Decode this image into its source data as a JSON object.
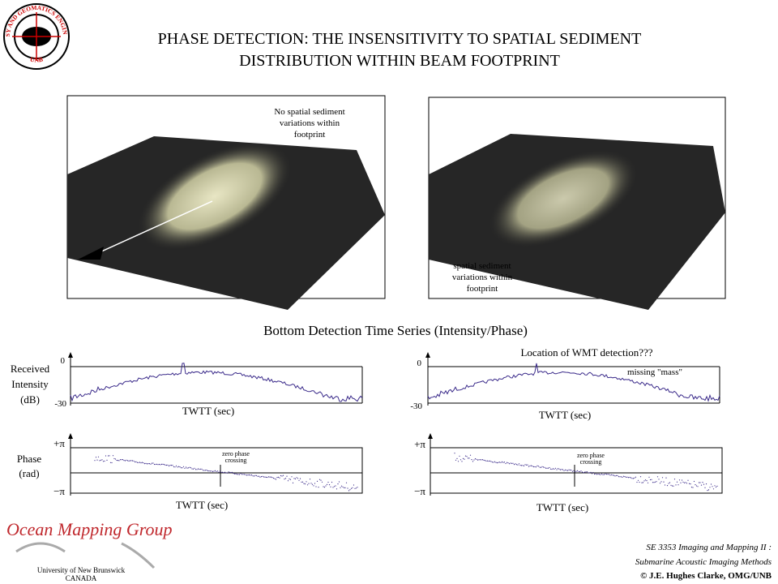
{
  "header": {
    "logo_text": "GEODESY AND GEOMATICS ENGINEERING",
    "logo_sub": "UNB",
    "title_lines": [
      "PHASE DETECTION: THE INSENSITIVITY TO SPATIAL SEDIMENT",
      "DISTRIBUTION WITHIN BEAM FOOTPRINT"
    ]
  },
  "images": [
    {
      "annotation_lines": [
        "No spatial sediment",
        "variations within",
        "footprint"
      ]
    },
    {
      "annotation_lines": [
        "spatial sediment",
        "variations within",
        "footprint"
      ]
    }
  ],
  "section_title": "Bottom Detection Time Series (Intensity/Phase)",
  "plots": [
    {
      "y_label_lines": [
        "Received",
        "Intensity",
        "(dB)"
      ],
      "y_top": "0",
      "y_bottom": "-30",
      "x_label": "TWTT (sec)"
    },
    {
      "annotation": "Location of WMT detection???",
      "note": "missing \"mass\"",
      "y_top": "0",
      "y_bottom": "-30",
      "x_label": "TWTT (sec)"
    },
    {
      "y_label_lines": [
        "Phase",
        "(rad)"
      ],
      "y_top": "+π",
      "y_bottom": "−π",
      "crossing_lines": [
        "zero phase",
        "crossing"
      ],
      "x_label": "TWTT (sec)"
    },
    {
      "y_top": "+π",
      "y_bottom": "−π",
      "crossing_lines": [
        "zero phase",
        "crossing"
      ],
      "x_label": "TWTT (sec)"
    }
  ],
  "footer": {
    "group": "Ocean Mapping Group",
    "university_lines": [
      "University of New Brunswick",
      "CANADA"
    ],
    "course_lines": [
      "SE 3353 Imaging and Mapping II :",
      "Submarine Acoustic Imaging Methods"
    ],
    "credit": "© J.E. Hughes Clarke, OMG/UNB"
  }
}
